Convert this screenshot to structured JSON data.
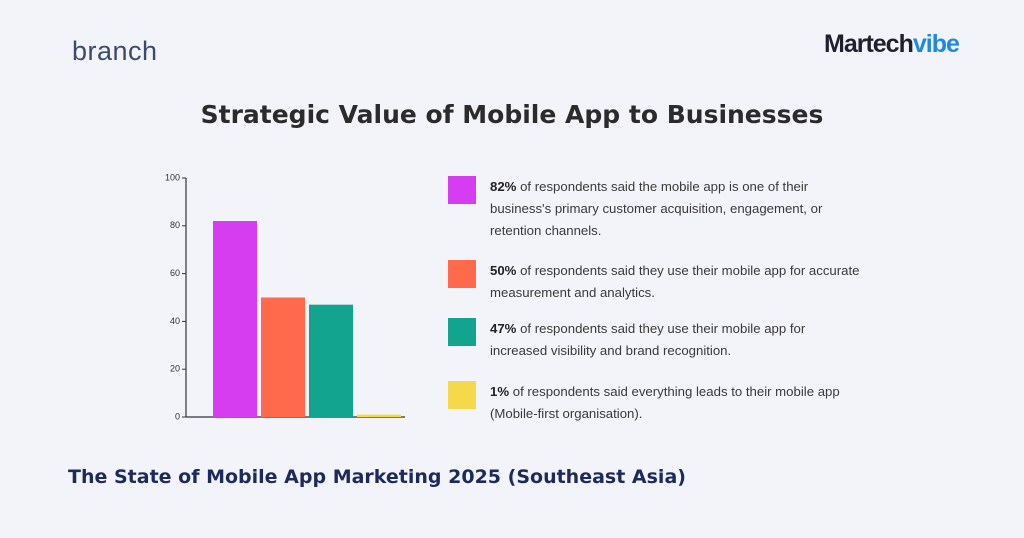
{
  "logos": {
    "left": "branch",
    "right_main": "Martech",
    "right_accent": "vibe"
  },
  "footer": "The State of Mobile App Marketing 2025 (Southeast Asia)",
  "chart_data": {
    "type": "bar",
    "title": "Strategic Value of Mobile App to Businesses",
    "categories": [
      "of respondents said the mobile app is one of their business's primary customer acquisition, engagement, or retention channels.",
      "of respondents said they use their mobile app for accurate measurement and analytics.",
      "of respondents said they use their mobile app for increased visibility and brand recognition.",
      "of respondents said everything leads to their mobile app (Mobile-first organisation)."
    ],
    "values": [
      82,
      50,
      47,
      1
    ],
    "value_labels": [
      "82%",
      "50%",
      "47%",
      "1%"
    ],
    "colors": [
      "#d63cf0",
      "#ff6a4d",
      "#12a48f",
      "#f6d94a"
    ],
    "ylim": [
      0,
      100
    ],
    "yticks": [
      0,
      20,
      40,
      60,
      80,
      100
    ]
  }
}
